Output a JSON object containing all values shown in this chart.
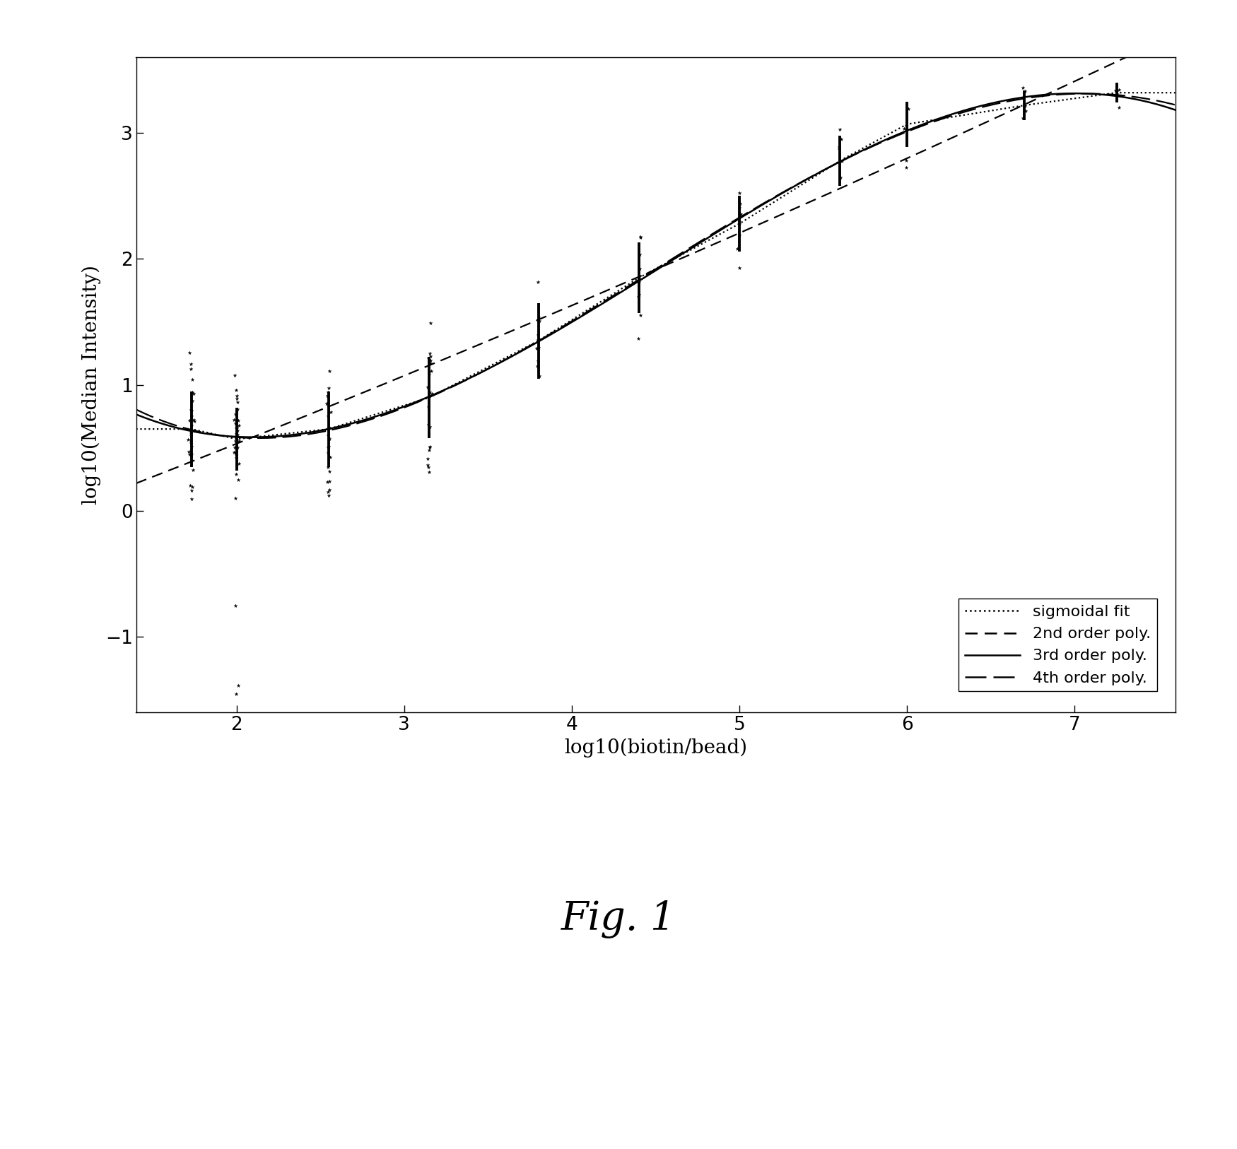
{
  "title": "Fig. 1",
  "xlabel": "log10(biotin/bead)",
  "ylabel": "log10(Median Intensity)",
  "xlim": [
    1.4,
    7.6
  ],
  "ylim": [
    -1.6,
    3.6
  ],
  "xticks": [
    2,
    3,
    4,
    5,
    6,
    7
  ],
  "yticks": [
    -1,
    0,
    1,
    2,
    3
  ],
  "data_x_centers": [
    1.73,
    2.0,
    2.55,
    3.15,
    3.8,
    4.4,
    5.0,
    5.6,
    6.0,
    6.7,
    7.25
  ],
  "data_y_means": [
    0.65,
    0.57,
    0.65,
    0.9,
    1.35,
    1.85,
    2.28,
    2.78,
    3.07,
    3.22,
    3.32
  ],
  "data_y_err": [
    0.3,
    0.25,
    0.3,
    0.32,
    0.3,
    0.28,
    0.22,
    0.2,
    0.18,
    0.12,
    0.08
  ],
  "background_color": "#ffffff",
  "line_color": "#000000",
  "legend_labels": [
    "sigmoidal fit",
    "2nd order poly.",
    "3rd order poly.",
    "4th order poly."
  ]
}
